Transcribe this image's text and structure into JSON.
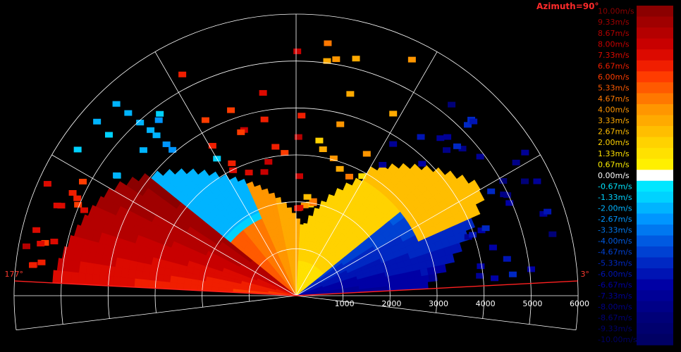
{
  "chart_data": {
    "type": "heatmap",
    "title": "Azimuth=90°",
    "description_units": "m/s",
    "range_ticks": [
      "1000",
      "2000",
      "3000",
      "4000",
      "5000",
      "6000"
    ],
    "range_max": 6000,
    "elevation_labels": {
      "left": "177°",
      "right": "3°"
    },
    "elevation_limits": [
      3,
      177
    ],
    "colorbar": {
      "labels": [
        "10.00m/s",
        "9.33m/s",
        "8.67m/s",
        "8.00m/s",
        "7.33m/s",
        "6.67m/s",
        "6.00m/s",
        "5.33m/s",
        "4.67m/s",
        "4.00m/s",
        "3.33m/s",
        "2.67m/s",
        "2.00m/s",
        "1.33m/s",
        "0.67m/s",
        "0.00m/s",
        "-0.67m/s",
        "-1.33m/s",
        "-2.00m/s",
        "-2.67m/s",
        "-3.33m/s",
        "-4.00m/s",
        "-4.67m/s",
        "-5.33m/s",
        "-6.00m/s",
        "-6.67m/s",
        "-7.33m/s",
        "-8.00m/s",
        "-8.67m/s",
        "-9.33m/s",
        "-10.00m/s"
      ],
      "colors": [
        "#8b0000",
        "#a00000",
        "#b40000",
        "#c80000",
        "#dc0a00",
        "#f01e00",
        "#ff3c00",
        "#ff5a00",
        "#ff7800",
        "#ff9600",
        "#ffaa00",
        "#ffbe00",
        "#ffd200",
        "#ffe100",
        "#fff000",
        "#ffffff",
        "#00e6ff",
        "#00d2ff",
        "#00b4ff",
        "#0096ff",
        "#0078f0",
        "#005ae1",
        "#0041d2",
        "#0028c3",
        "#0014b4",
        "#0000a5",
        "#000096",
        "#000087",
        "#000078",
        "#00006e",
        "#000064"
      ]
    },
    "velocity_field": {
      "left_region_value_mps": 8.0,
      "upper_region_value_mps": 2.0,
      "right_region_value_mps": -8.0,
      "upper_left_region_value_mps": -1.33
    }
  }
}
